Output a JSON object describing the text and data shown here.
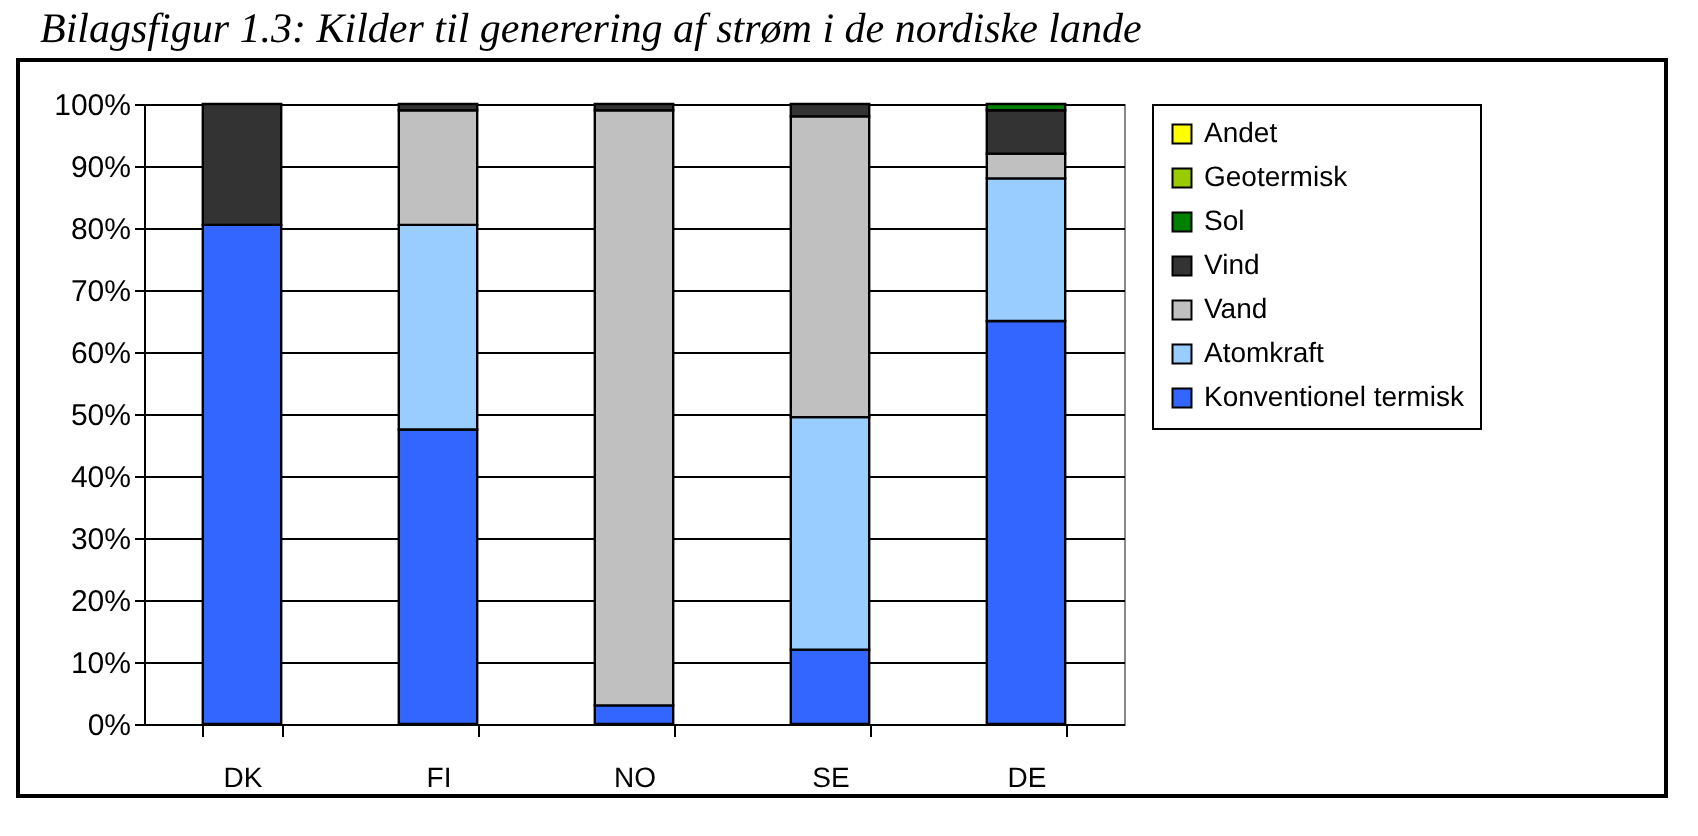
{
  "chart_data": {
    "type": "bar",
    "title": "Bilagsfigur 1.3: Kilder til generering af strøm i de nordiske lande",
    "stacked": true,
    "categories": [
      "DK",
      "FI",
      "NO",
      "SE",
      "DE"
    ],
    "series": [
      {
        "name": "Konventionel termisk",
        "color": "#3366ff",
        "values": [
          80.5,
          47.5,
          3,
          12,
          65
        ]
      },
      {
        "name": "Atomkraft",
        "color": "#99ccff",
        "values": [
          0,
          33,
          0,
          37.5,
          23
        ]
      },
      {
        "name": "Vand",
        "color": "#c0c0c0",
        "values": [
          0,
          18.5,
          96,
          48.5,
          4
        ]
      },
      {
        "name": "Vind",
        "color": "#333333",
        "values": [
          19.5,
          1,
          1,
          2,
          7
        ]
      },
      {
        "name": "Sol",
        "color": "#008000",
        "values": [
          0,
          0,
          0,
          0,
          1
        ]
      },
      {
        "name": "Geotermisk",
        "color": "#99cc00",
        "values": [
          0,
          0,
          0,
          0,
          0
        ]
      },
      {
        "name": "Andet",
        "color": "#ffff00",
        "values": [
          0,
          0,
          0,
          0,
          0
        ]
      }
    ],
    "ylim": [
      0,
      100
    ],
    "yticks": [
      {
        "value": 0,
        "label": "0%"
      },
      {
        "value": 10,
        "label": "10%"
      },
      {
        "value": 20,
        "label": "20%"
      },
      {
        "value": 30,
        "label": "30%"
      },
      {
        "value": 40,
        "label": "40%"
      },
      {
        "value": 50,
        "label": "50%"
      },
      {
        "value": 60,
        "label": "60%"
      },
      {
        "value": 70,
        "label": "70%"
      },
      {
        "value": 80,
        "label": "80%"
      },
      {
        "value": 90,
        "label": "90%"
      },
      {
        "value": 100,
        "label": "100%"
      }
    ],
    "grid": "y",
    "legend": "right"
  }
}
